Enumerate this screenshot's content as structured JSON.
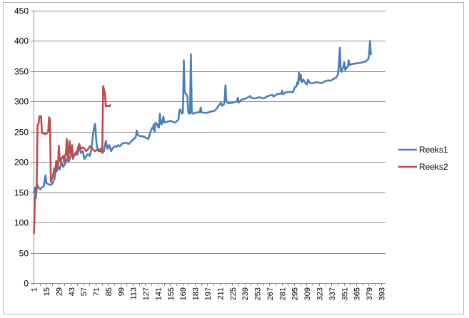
{
  "chart_data": {
    "type": "line",
    "title": "",
    "xlabel": "",
    "ylabel": "",
    "ylim": [
      0,
      450
    ],
    "yticks": [
      0,
      50,
      100,
      150,
      200,
      250,
      300,
      350,
      400,
      450
    ],
    "x_count": 397,
    "xticks": [
      1,
      15,
      29,
      43,
      57,
      71,
      85,
      99,
      113,
      127,
      141,
      155,
      169,
      183,
      197,
      211,
      225,
      239,
      253,
      267,
      281,
      295,
      309,
      323,
      337,
      351,
      365,
      379,
      393
    ],
    "grid": "horizontal",
    "legend": "right",
    "series": [
      {
        "name": "Reeks1",
        "color": "#4a7ebb",
        "points": [
          [
            1,
            150
          ],
          [
            2,
            158
          ],
          [
            3,
            140
          ],
          [
            4,
            155
          ],
          [
            5,
            162
          ],
          [
            6,
            158
          ],
          [
            8,
            155
          ],
          [
            10,
            158
          ],
          [
            12,
            160
          ],
          [
            13,
            170
          ],
          [
            14,
            178
          ],
          [
            15,
            165
          ],
          [
            18,
            163
          ],
          [
            20,
            162
          ],
          [
            22,
            165
          ],
          [
            24,
            172
          ],
          [
            25,
            180
          ],
          [
            26,
            195
          ],
          [
            27,
            185
          ],
          [
            28,
            192
          ],
          [
            30,
            188
          ],
          [
            32,
            200
          ],
          [
            34,
            192
          ],
          [
            36,
            197
          ],
          [
            38,
            205
          ],
          [
            40,
            200
          ],
          [
            42,
            208
          ],
          [
            44,
            213
          ],
          [
            46,
            210
          ],
          [
            48,
            216
          ],
          [
            50,
            212
          ],
          [
            52,
            225
          ],
          [
            54,
            215
          ],
          [
            56,
            218
          ],
          [
            58,
            205
          ],
          [
            60,
            210
          ],
          [
            62,
            213
          ],
          [
            64,
            210
          ],
          [
            66,
            224
          ],
          [
            67,
            238
          ],
          [
            68,
            250
          ],
          [
            69,
            258
          ],
          [
            70,
            263
          ],
          [
            71,
            240
          ],
          [
            72,
            225
          ],
          [
            74,
            218
          ],
          [
            76,
            222
          ],
          [
            78,
            215
          ],
          [
            80,
            218
          ],
          [
            82,
            235
          ],
          [
            84,
            222
          ],
          [
            86,
            228
          ],
          [
            88,
            218
          ],
          [
            90,
            223
          ],
          [
            92,
            226
          ],
          [
            94,
            225
          ],
          [
            96,
            228
          ],
          [
            98,
            226
          ],
          [
            100,
            230
          ],
          [
            104,
            232
          ],
          [
            108,
            230
          ],
          [
            112,
            236
          ],
          [
            115,
            240
          ],
          [
            116,
            242
          ],
          [
            117,
            252
          ],
          [
            118,
            245
          ],
          [
            120,
            243
          ],
          [
            125,
            242
          ],
          [
            130,
            238
          ],
          [
            132,
            248
          ],
          [
            134,
            256
          ],
          [
            135,
            255
          ],
          [
            136,
            262
          ],
          [
            137,
            250
          ],
          [
            138,
            265
          ],
          [
            140,
            262
          ],
          [
            141,
            258
          ],
          [
            142,
            257
          ],
          [
            143,
            280
          ],
          [
            144,
            264
          ],
          [
            145,
            262
          ],
          [
            146,
            268
          ],
          [
            147,
            275
          ],
          [
            148,
            265
          ],
          [
            150,
            266
          ],
          [
            155,
            268
          ],
          [
            160,
            265
          ],
          [
            164,
            270
          ],
          [
            165,
            285
          ],
          [
            166,
            287
          ],
          [
            167,
            283
          ],
          [
            168,
            280
          ],
          [
            169,
            282
          ],
          [
            170,
            368
          ],
          [
            171,
            315
          ],
          [
            172,
            313
          ],
          [
            173,
            312
          ],
          [
            174,
            308
          ],
          [
            175,
            282
          ],
          [
            176,
            280
          ],
          [
            177,
            280
          ],
          [
            178,
            378
          ],
          [
            179,
            282
          ],
          [
            180,
            280
          ],
          [
            185,
            282
          ],
          [
            188,
            282
          ],
          [
            189,
            290
          ],
          [
            190,
            282
          ],
          [
            195,
            281
          ],
          [
            200,
            283
          ],
          [
            205,
            285
          ],
          [
            208,
            290
          ],
          [
            210,
            295
          ],
          [
            212,
            298
          ],
          [
            213,
            293
          ],
          [
            215,
            295
          ],
          [
            216,
            300
          ],
          [
            217,
            327
          ],
          [
            218,
            300
          ],
          [
            220,
            297
          ],
          [
            225,
            298
          ],
          [
            230,
            300
          ],
          [
            231,
            306
          ],
          [
            232,
            298
          ],
          [
            235,
            303
          ],
          [
            240,
            305
          ],
          [
            245,
            309
          ],
          [
            246,
            306
          ],
          [
            250,
            305
          ],
          [
            255,
            307
          ],
          [
            260,
            305
          ],
          [
            265,
            309
          ],
          [
            270,
            311
          ],
          [
            271,
            308
          ],
          [
            275,
            312
          ],
          [
            280,
            313
          ],
          [
            281,
            318
          ],
          [
            282,
            312
          ],
          [
            285,
            315
          ],
          [
            290,
            316
          ],
          [
            293,
            315
          ],
          [
            295,
            323
          ],
          [
            297,
            325
          ],
          [
            298,
            332
          ],
          [
            299,
            329
          ],
          [
            300,
            348
          ],
          [
            301,
            335
          ],
          [
            302,
            344
          ],
          [
            303,
            332
          ],
          [
            305,
            336
          ],
          [
            306,
            333
          ],
          [
            308,
            329
          ],
          [
            309,
            328
          ],
          [
            310,
            336
          ],
          [
            312,
            331
          ],
          [
            315,
            330
          ],
          [
            320,
            332
          ],
          [
            325,
            330
          ],
          [
            330,
            334
          ],
          [
            333,
            335
          ],
          [
            335,
            334
          ],
          [
            340,
            338
          ],
          [
            342,
            340
          ],
          [
            344,
            345
          ],
          [
            345,
            362
          ],
          [
            346,
            389
          ],
          [
            347,
            352
          ],
          [
            348,
            349
          ],
          [
            350,
            358
          ],
          [
            351,
            365
          ],
          [
            352,
            352
          ],
          [
            355,
            358
          ],
          [
            356,
            368
          ],
          [
            357,
            360
          ],
          [
            360,
            362
          ],
          [
            365,
            363
          ],
          [
            370,
            364
          ],
          [
            375,
            366
          ],
          [
            378,
            370
          ],
          [
            379,
            377
          ],
          [
            380,
            400
          ],
          [
            381,
            378
          ]
        ]
      },
      {
        "name": "Reeks2",
        "color": "#be4b48",
        "points": [
          [
            1,
            82
          ],
          [
            2,
            138
          ],
          [
            3,
            150
          ],
          [
            4,
            158
          ],
          [
            5,
            261
          ],
          [
            6,
            262
          ],
          [
            7,
            275
          ],
          [
            8,
            276
          ],
          [
            9,
            275
          ],
          [
            10,
            248
          ],
          [
            12,
            247
          ],
          [
            14,
            246
          ],
          [
            16,
            248
          ],
          [
            17,
            250
          ],
          [
            18,
            274
          ],
          [
            19,
            271
          ],
          [
            20,
            167
          ],
          [
            21,
            172
          ],
          [
            22,
            175
          ],
          [
            23,
            182
          ],
          [
            24,
            190
          ],
          [
            25,
            184
          ],
          [
            26,
            202
          ],
          [
            27,
            196
          ],
          [
            28,
            190
          ],
          [
            29,
            227
          ],
          [
            30,
            205
          ],
          [
            31,
            200
          ],
          [
            32,
            206
          ],
          [
            34,
            210
          ],
          [
            35,
            200
          ],
          [
            36,
            210
          ],
          [
            37,
            215
          ],
          [
            38,
            238
          ],
          [
            39,
            208
          ],
          [
            40,
            206
          ],
          [
            41,
            235
          ],
          [
            42,
            220
          ],
          [
            43,
            212
          ],
          [
            44,
            228
          ],
          [
            45,
            205
          ],
          [
            46,
            210
          ],
          [
            47,
            211
          ],
          [
            48,
            212
          ],
          [
            49,
            214
          ],
          [
            50,
            220
          ],
          [
            51,
            226
          ],
          [
            52,
            230
          ],
          [
            54,
            222
          ],
          [
            56,
            224
          ],
          [
            58,
            222
          ],
          [
            60,
            218
          ],
          [
            62,
            221
          ],
          [
            64,
            226
          ],
          [
            66,
            224
          ],
          [
            68,
            220
          ],
          [
            70,
            218
          ],
          [
            72,
            220
          ],
          [
            74,
            218
          ],
          [
            76,
            218
          ],
          [
            78,
            216
          ],
          [
            79,
            325
          ],
          [
            80,
            320
          ],
          [
            81,
            313
          ],
          [
            82,
            292
          ],
          [
            84,
            293
          ],
          [
            86,
            292
          ],
          [
            87,
            294
          ]
        ]
      }
    ]
  }
}
